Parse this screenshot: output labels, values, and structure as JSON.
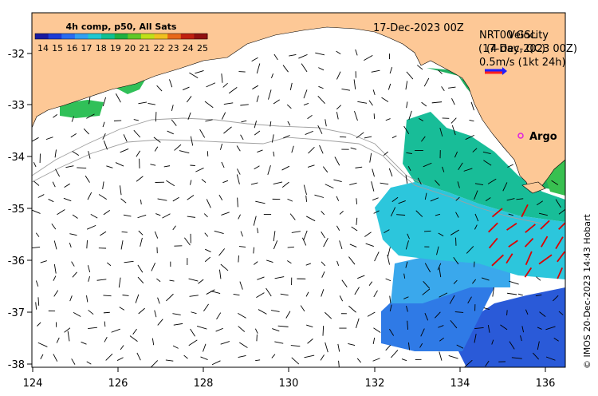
{
  "colorbar": {
    "title": "4h comp, p50, All Sats",
    "labels": [
      "14",
      "15",
      "16",
      "17",
      "18",
      "19",
      "20",
      "21",
      "22",
      "23",
      "24",
      "25"
    ],
    "colors": [
      "#1a1aa0",
      "#1e3cd6",
      "#2a6cf0",
      "#33a0f0",
      "#20c8d0",
      "#10c090",
      "#20b040",
      "#60c828",
      "#c0e018",
      "#f0c020",
      "#e86818",
      "#c02010",
      "#901010"
    ]
  },
  "date_label": "17-Dec-2023 00Z",
  "legend": {
    "line1_a": "NRT00 GSL",
    "line1_b": "Velocity",
    "line2_a": "(17-Dec-2023 00Z)",
    "line2_b": "(4 day, QC)",
    "scale": "0.5m/s (1kt 24h)"
  },
  "argo_label": "Argo",
  "credit": "© IMOS 20-Dec-2023 14:43 Hobart",
  "axes": {
    "x_ticks": [
      "124",
      "126",
      "128",
      "130",
      "132",
      "134",
      "136"
    ],
    "y_ticks": [
      "-32",
      "-33",
      "-34",
      "-35",
      "-36",
      "-37",
      "-38"
    ]
  },
  "colors": {
    "land": "#fdc896",
    "vector_black": "#000000",
    "vector_red": "#dd0000",
    "argo": "#e020e0"
  }
}
